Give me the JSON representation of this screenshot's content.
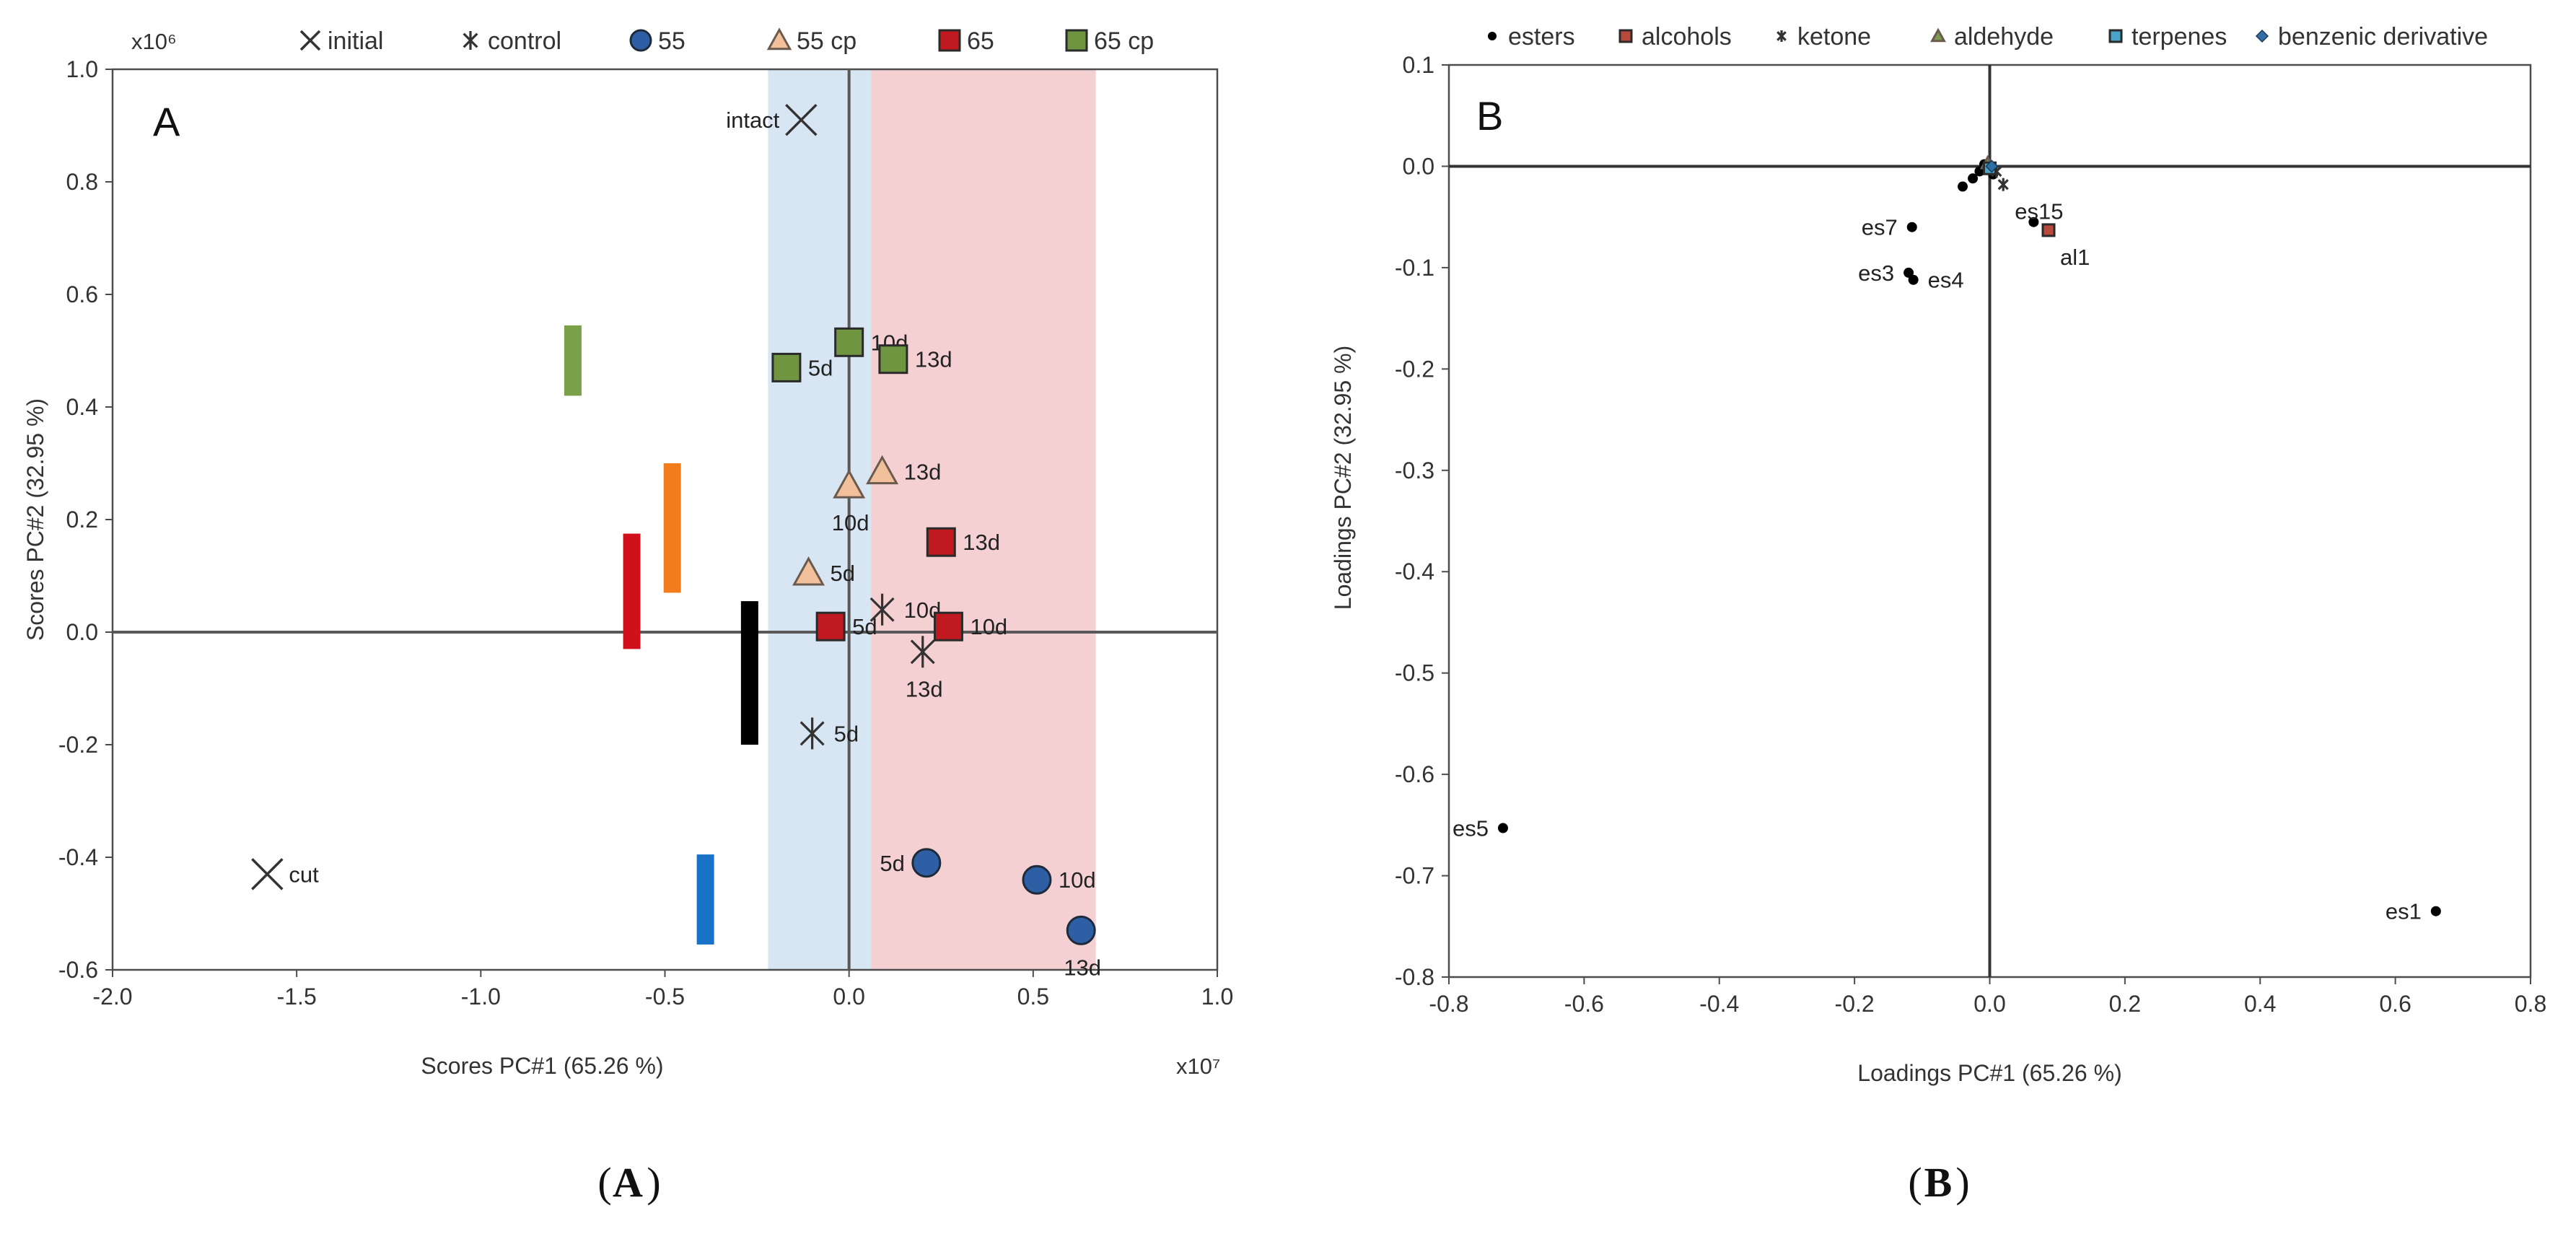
{
  "chart_data": [
    {
      "type": "scatter",
      "panel_label": "A",
      "caption": "A",
      "xlabel": "Scores PC#1 (65.26 %)",
      "ylabel": "Scores PC#2 (32.95 %)",
      "x_multiplier": "x10⁷",
      "y_multiplier": "x10⁶",
      "xlim": [
        -2.0,
        1.0
      ],
      "ylim": [
        -0.6,
        1.0
      ],
      "x_ticks": [
        "-2.0",
        "-1.5",
        "-1.0",
        "-0.5",
        "0.0",
        "0.5",
        "1.0"
      ],
      "y_ticks": [
        "-0.6",
        "-0.4",
        "-0.2",
        "0.0",
        "0.2",
        "0.4",
        "0.6",
        "0.8",
        "1.0"
      ],
      "x_tick_values": [
        -2.0,
        -1.5,
        -1.0,
        -0.5,
        0.0,
        0.5,
        1.0
      ],
      "y_tick_values": [
        -0.6,
        -0.4,
        -0.2,
        0.0,
        0.2,
        0.4,
        0.6,
        0.8,
        1.0
      ],
      "bands": [
        {
          "name": "blue-band",
          "x0": -0.22,
          "x1": 0.06,
          "color": "#bed3ea",
          "opacity": 0.6
        },
        {
          "name": "red-band",
          "x0": 0.06,
          "x1": 0.67,
          "color": "#eba1a5",
          "opacity": 0.5
        }
      ],
      "legend": [
        {
          "label": "initial",
          "marker": "x",
          "color": "#333333"
        },
        {
          "label": "control",
          "marker": "star",
          "color": "#333333"
        },
        {
          "label": "55",
          "marker": "circle",
          "color": "#2e5fa5"
        },
        {
          "label": "55 cp",
          "marker": "triangle",
          "color": "#f2c09a"
        },
        {
          "label": "65",
          "marker": "square",
          "color": "#c0191f"
        },
        {
          "label": "65 cp",
          "marker": "square",
          "color": "#6f9540"
        }
      ],
      "series": [
        {
          "name": "initial",
          "marker": "x",
          "color": "#333333",
          "points": [
            {
              "x": -0.13,
              "y": 0.91,
              "label": "intact",
              "label_pos": "left"
            },
            {
              "x": -1.58,
              "y": -0.43,
              "label": "cut",
              "label_pos": "right"
            }
          ]
        },
        {
          "name": "control",
          "marker": "star",
          "color": "#333333",
          "points": [
            {
              "x": -0.1,
              "y": -0.18,
              "label": "5d",
              "label_pos": "right"
            },
            {
              "x": 0.09,
              "y": 0.04,
              "label": "10d",
              "label_pos": "right"
            },
            {
              "x": 0.2,
              "y": -0.035,
              "label": "13d",
              "label_pos": "below"
            }
          ]
        },
        {
          "name": "55",
          "marker": "circle",
          "color": "#2e5fa5",
          "points": [
            {
              "x": 0.21,
              "y": -0.41,
              "label": "5d",
              "label_pos": "left"
            },
            {
              "x": 0.51,
              "y": -0.44,
              "label": "10d",
              "label_pos": "right"
            },
            {
              "x": 0.63,
              "y": -0.53,
              "label": "13d",
              "label_pos": "below"
            }
          ]
        },
        {
          "name": "55 cp",
          "marker": "triangle",
          "color": "#f2c09a",
          "points": [
            {
              "x": -0.11,
              "y": 0.105,
              "label": "5d",
              "label_pos": "right"
            },
            {
              "x": 0.0,
              "y": 0.26,
              "label": "10d",
              "label_pos": "below"
            },
            {
              "x": 0.09,
              "y": 0.285,
              "label": "13d",
              "label_pos": "right"
            }
          ]
        },
        {
          "name": "65",
          "marker": "square",
          "color": "#c0191f",
          "points": [
            {
              "x": -0.05,
              "y": 0.01,
              "label": "5d",
              "label_pos": "right"
            },
            {
              "x": 0.25,
              "y": 0.16,
              "label": "13d",
              "label_pos": "right"
            },
            {
              "x": 0.27,
              "y": 0.01,
              "label": "10d",
              "label_pos": "right"
            }
          ]
        },
        {
          "name": "65 cp",
          "marker": "square",
          "color": "#6f9540",
          "points": [
            {
              "x": -0.17,
              "y": 0.47,
              "label": "5d",
              "label_pos": "right"
            },
            {
              "x": 0.0,
              "y": 0.515,
              "label": "10d",
              "label_pos": "right"
            },
            {
              "x": 0.12,
              "y": 0.485,
              "label": "13d",
              "label_pos": "right"
            }
          ]
        }
      ],
      "bars": [
        {
          "name": "green-bar",
          "x": -0.75,
          "y0": 0.42,
          "y1": 0.545,
          "color": "#7aa04a"
        },
        {
          "name": "orange-bar",
          "x": -0.48,
          "y0": 0.07,
          "y1": 0.3,
          "color": "#f27c1c"
        },
        {
          "name": "red-bar",
          "x": -0.59,
          "y0": -0.03,
          "y1": 0.175,
          "color": "#d0111b"
        },
        {
          "name": "black-bar",
          "x": -0.27,
          "y0": -0.2,
          "y1": 0.055,
          "color": "#000000"
        },
        {
          "name": "blue-bar",
          "x": -0.39,
          "y0": -0.555,
          "y1": -0.395,
          "color": "#1872c8"
        }
      ]
    },
    {
      "type": "scatter",
      "panel_label": "B",
      "caption": "B",
      "xlabel": "Loadings PC#1 (65.26 %)",
      "ylabel": "Loadings PC#2 (32.95 %)",
      "xlim": [
        -0.8,
        0.8
      ],
      "ylim": [
        -0.8,
        0.1
      ],
      "x_ticks": [
        "-0.8",
        "-0.6",
        "-0.4",
        "-0.2",
        "0.0",
        "0.2",
        "0.4",
        "0.6",
        "0.8"
      ],
      "y_ticks": [
        "-0.8",
        "-0.7",
        "-0.6",
        "-0.5",
        "-0.4",
        "-0.3",
        "-0.2",
        "-0.1",
        "0.0",
        "0.1"
      ],
      "x_tick_values": [
        -0.8,
        -0.6,
        -0.4,
        -0.2,
        0.0,
        0.2,
        0.4,
        0.6,
        0.8
      ],
      "y_tick_values": [
        -0.8,
        -0.7,
        -0.6,
        -0.5,
        -0.4,
        -0.3,
        -0.2,
        -0.1,
        0.0,
        0.1
      ],
      "legend": [
        {
          "label": "esters",
          "marker": "dot",
          "color": "#000000"
        },
        {
          "label": "alcohols",
          "marker": "square",
          "color": "#b84a3c"
        },
        {
          "label": "ketone",
          "marker": "star",
          "color": "#333333"
        },
        {
          "label": "aldehyde",
          "marker": "triangle",
          "color": "#7a9b4e"
        },
        {
          "label": "terpenes",
          "marker": "square",
          "color": "#4aa3c8"
        },
        {
          "label": "benzenic derivative",
          "marker": "diamond",
          "color": "#2e6fa5"
        }
      ],
      "series": [
        {
          "name": "esters",
          "marker": "dot",
          "color": "#000000",
          "points": [
            {
              "x": 0.66,
              "y": -0.735,
              "label": "es1",
              "label_pos": "left"
            },
            {
              "x": -0.72,
              "y": -0.653,
              "label": "es5",
              "label_pos": "left"
            },
            {
              "x": -0.115,
              "y": -0.06,
              "label": "es7",
              "label_pos": "left"
            },
            {
              "x": -0.12,
              "y": -0.105,
              "label": "es3",
              "label_pos": "left"
            },
            {
              "x": -0.113,
              "y": -0.112,
              "label": "es4",
              "label_pos": "right"
            },
            {
              "x": 0.065,
              "y": -0.055,
              "label": "",
              "label_pos": "none"
            },
            {
              "x": -0.04,
              "y": -0.02,
              "label": "",
              "label_pos": "none"
            },
            {
              "x": -0.025,
              "y": -0.012,
              "label": "",
              "label_pos": "none"
            },
            {
              "x": -0.015,
              "y": -0.005,
              "label": "",
              "label_pos": "none"
            },
            {
              "x": 0.005,
              "y": -0.008,
              "label": "",
              "label_pos": "none"
            },
            {
              "x": -0.008,
              "y": 0.002,
              "label": "",
              "label_pos": "none"
            }
          ]
        },
        {
          "name": "alcohols",
          "marker": "square",
          "color": "#b84a3c",
          "points": [
            {
              "x": 0.087,
              "y": -0.063,
              "label": "al1",
              "label_pos": "below-right"
            }
          ]
        },
        {
          "name": "ketone",
          "marker": "star",
          "color": "#333333",
          "points": [
            {
              "x": 0.02,
              "y": -0.018,
              "label": "es15",
              "label_pos": "below-right"
            },
            {
              "x": 0.01,
              "y": -0.005,
              "label": "",
              "label_pos": "none"
            }
          ]
        },
        {
          "name": "aldehyde",
          "marker": "triangle",
          "color": "#7a9b4e",
          "points": [
            {
              "x": -0.003,
              "y": 0.003,
              "label": "",
              "label_pos": "none"
            }
          ]
        },
        {
          "name": "terpenes",
          "marker": "square",
          "color": "#4aa3c8",
          "points": [
            {
              "x": 0.0,
              "y": -0.002,
              "label": "",
              "label_pos": "none"
            }
          ]
        },
        {
          "name": "benzenic derivative",
          "marker": "diamond",
          "color": "#2e6fa5",
          "points": [
            {
              "x": 0.003,
              "y": 0.0,
              "label": "",
              "label_pos": "none"
            }
          ]
        }
      ]
    }
  ]
}
